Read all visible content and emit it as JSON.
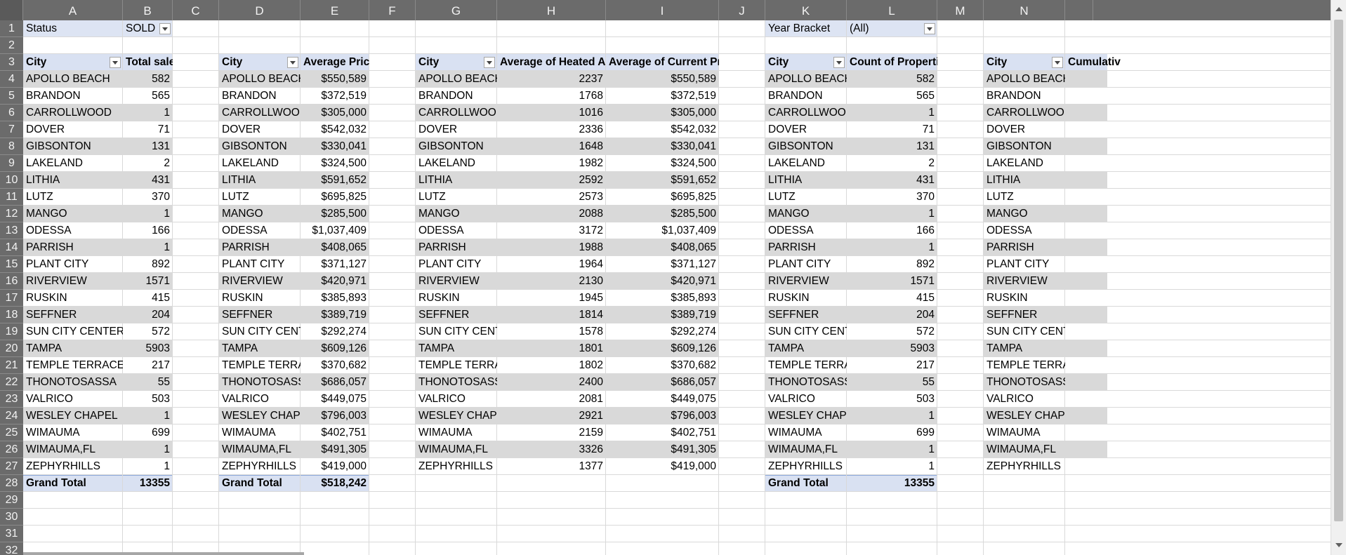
{
  "columns": [
    "A",
    "B",
    "C",
    "D",
    "E",
    "F",
    "G",
    "H",
    "I",
    "J",
    "K",
    "L",
    "M",
    "N"
  ],
  "rows": [
    "1",
    "2",
    "3",
    "4",
    "5",
    "6",
    "7",
    "8",
    "9",
    "10",
    "11",
    "12",
    "13",
    "14",
    "15",
    "16",
    "17",
    "18",
    "19",
    "20",
    "21",
    "22",
    "23",
    "24",
    "25",
    "26",
    "27",
    "28",
    "29",
    "30",
    "31",
    "32"
  ],
  "filters": {
    "status": {
      "label": "Status",
      "value": "SOLD"
    },
    "year_bracket": {
      "label": "Year Bracket",
      "value": "(All)"
    }
  },
  "cities": [
    "APOLLO BEACH",
    "BRANDON",
    "CARROLLWOOD",
    "DOVER",
    "GIBSONTON",
    "LAKELAND",
    "LITHIA",
    "LUTZ",
    "MANGO",
    "ODESSA",
    "PARRISH",
    "PLANT CITY",
    "RIVERVIEW",
    "RUSKIN",
    "SEFFNER",
    "SUN CITY CENTER",
    "TAMPA",
    "TEMPLE TERRACE",
    "THONOTOSASSA",
    "VALRICO",
    "WESLEY CHAPEL",
    "WIMAUMA",
    "WIMAUMA,FL",
    "ZEPHYRHILLS"
  ],
  "pivot_sales": {
    "headers": [
      "City",
      "Total sales"
    ],
    "values": [
      "582",
      "565",
      "1",
      "71",
      "131",
      "2",
      "431",
      "370",
      "1",
      "166",
      "1",
      "892",
      "1571",
      "415",
      "204",
      "572",
      "5903",
      "217",
      "55",
      "503",
      "1",
      "699",
      "1",
      "1"
    ],
    "grand_total_label": "Grand Total",
    "grand_total": "13355"
  },
  "pivot_prices": {
    "headers": [
      "City",
      "Average Prices"
    ],
    "values": [
      "$550,589",
      "$372,519",
      "$305,000",
      "$542,032",
      "$330,041",
      "$324,500",
      "$591,652",
      "$695,825",
      "$285,500",
      "$1,037,409",
      "$408,065",
      "$371,127",
      "$420,971",
      "$385,893",
      "$389,719",
      "$292,274",
      "$609,126",
      "$370,682",
      "$686,057",
      "$449,075",
      "$796,003",
      "$402,751",
      "$491,305",
      "$419,000"
    ],
    "grand_total_label": "Grand Total",
    "grand_total": "$518,242"
  },
  "pivot_area": {
    "headers": [
      "City",
      "Average of Heated Area",
      "Average of Current Price"
    ],
    "area": [
      "2237",
      "1768",
      "1016",
      "2336",
      "1648",
      "1982",
      "2592",
      "2573",
      "2088",
      "3172",
      "1988",
      "1964",
      "2130",
      "1945",
      "1814",
      "1578",
      "1801",
      "1802",
      "2400",
      "2081",
      "2921",
      "2159",
      "3326",
      "1377"
    ],
    "price": [
      "$550,589",
      "$372,519",
      "$305,000",
      "$542,032",
      "$330,041",
      "$324,500",
      "$591,652",
      "$695,825",
      "$285,500",
      "$1,037,409",
      "$408,065",
      "$371,127",
      "$420,971",
      "$385,893",
      "$389,719",
      "$292,274",
      "$609,126",
      "$370,682",
      "$686,057",
      "$449,075",
      "$796,003",
      "$402,751",
      "$491,305",
      "$419,000"
    ]
  },
  "pivot_count": {
    "headers": [
      "City",
      "Count of Properties"
    ],
    "values": [
      "582",
      "565",
      "1",
      "71",
      "131",
      "2",
      "431",
      "370",
      "1",
      "166",
      "1",
      "892",
      "1571",
      "415",
      "204",
      "572",
      "5903",
      "217",
      "55",
      "503",
      "1",
      "699",
      "1",
      "1"
    ],
    "grand_total_label": "Grand Total",
    "grand_total": "13355"
  },
  "pivot_cumulative": {
    "headers": [
      "City",
      "Cumulativ"
    ]
  }
}
